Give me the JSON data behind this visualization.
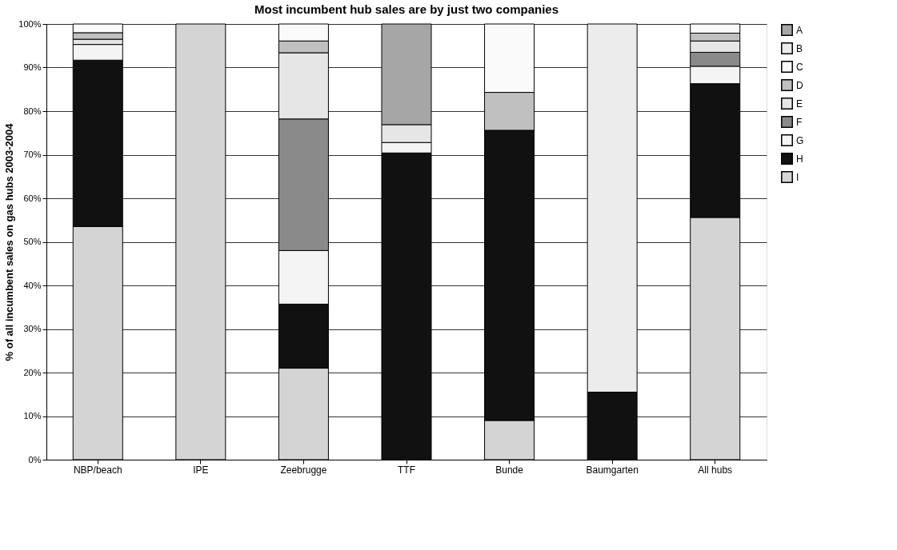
{
  "chart_data": {
    "type": "bar",
    "stacked": true,
    "title": "Most incumbent hub sales are by just two companies",
    "ylabel": "% of all incumbent sales on gas hubs 2003-2004",
    "categories": [
      "NBP/beach",
      "IPE",
      "Zeebrugge",
      "TTF",
      "Bunde",
      "Baumgarten",
      "All hubs"
    ],
    "series": [
      {
        "name": "I",
        "color": "#d4d4d4",
        "values": [
          53.5,
          100,
          21.0,
          null,
          9.0,
          null,
          55.6
        ]
      },
      {
        "name": "H",
        "color": "#111111",
        "values": [
          38.2,
          null,
          14.7,
          70.4,
          66.6,
          15.5,
          30.7
        ]
      },
      {
        "name": "G",
        "color": "#f4f4f4",
        "values": [
          3.6,
          null,
          12.3,
          2.4,
          null,
          null,
          4.0
        ]
      },
      {
        "name": "F",
        "color": "#8a8a8a",
        "values": [
          null,
          null,
          30.2,
          null,
          null,
          null,
          3.2
        ]
      },
      {
        "name": "E",
        "color": "#e6e6e6",
        "values": [
          1.2,
          null,
          15.2,
          4.1,
          null,
          null,
          2.6
        ]
      },
      {
        "name": "D",
        "color": "#c0c0c0",
        "values": [
          1.5,
          null,
          2.7,
          null,
          8.7,
          null,
          1.8
        ]
      },
      {
        "name": "C",
        "color": "#fafafa",
        "values": [
          2.0,
          null,
          3.9,
          null,
          15.7,
          null,
          2.1
        ]
      },
      {
        "name": "B",
        "color": "#ececec",
        "values": [
          null,
          null,
          null,
          null,
          null,
          84.5,
          null
        ]
      },
      {
        "name": "A",
        "color": "#a6a6a6",
        "values": [
          null,
          null,
          null,
          23.1,
          null,
          null,
          null
        ]
      }
    ],
    "ylim": [
      0,
      100
    ],
    "yticks": [
      {
        "value": 0,
        "label": "0%"
      },
      {
        "value": 10,
        "label": "10%"
      },
      {
        "value": 20,
        "label": "20%"
      },
      {
        "value": 30,
        "label": "30%"
      },
      {
        "value": 40,
        "label": "40%"
      },
      {
        "value": 50,
        "label": "50%"
      },
      {
        "value": 60,
        "label": "60%"
      },
      {
        "value": 70,
        "label": "70%"
      },
      {
        "value": 80,
        "label": "80%"
      },
      {
        "value": 90,
        "label": "90%"
      },
      {
        "value": 100,
        "label": "100%"
      }
    ],
    "grid": "y",
    "legend": "right"
  }
}
